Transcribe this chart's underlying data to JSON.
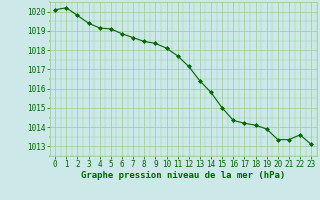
{
  "x": [
    0,
    1,
    2,
    3,
    4,
    5,
    6,
    7,
    8,
    9,
    10,
    11,
    12,
    13,
    14,
    15,
    16,
    17,
    18,
    19,
    20,
    21,
    22,
    23
  ],
  "y": [
    1020.1,
    1020.2,
    1019.8,
    1019.4,
    1019.15,
    1019.1,
    1018.85,
    1018.65,
    1018.45,
    1018.35,
    1018.1,
    1017.7,
    1017.15,
    1016.4,
    1015.8,
    1015.0,
    1014.35,
    1014.2,
    1014.1,
    1013.9,
    1013.35,
    1013.35,
    1013.6,
    1013.1
  ],
  "ylim": [
    1012.5,
    1020.5
  ],
  "xlim": [
    -0.5,
    23.5
  ],
  "yticks": [
    1013,
    1014,
    1015,
    1016,
    1017,
    1018,
    1019,
    1020
  ],
  "xticks": [
    0,
    1,
    2,
    3,
    4,
    5,
    6,
    7,
    8,
    9,
    10,
    11,
    12,
    13,
    14,
    15,
    16,
    17,
    18,
    19,
    20,
    21,
    22,
    23
  ],
  "xlabel": "Graphe pression niveau de la mer (hPa)",
  "line_color": "#006600",
  "marker_color": "#006600",
  "bg_color": "#cce8e8",
  "grid_color": "#99cc99",
  "tick_label_color": "#006600",
  "xlabel_color": "#006600",
  "tick_fontsize": 5.5,
  "xlabel_fontsize": 6.5
}
